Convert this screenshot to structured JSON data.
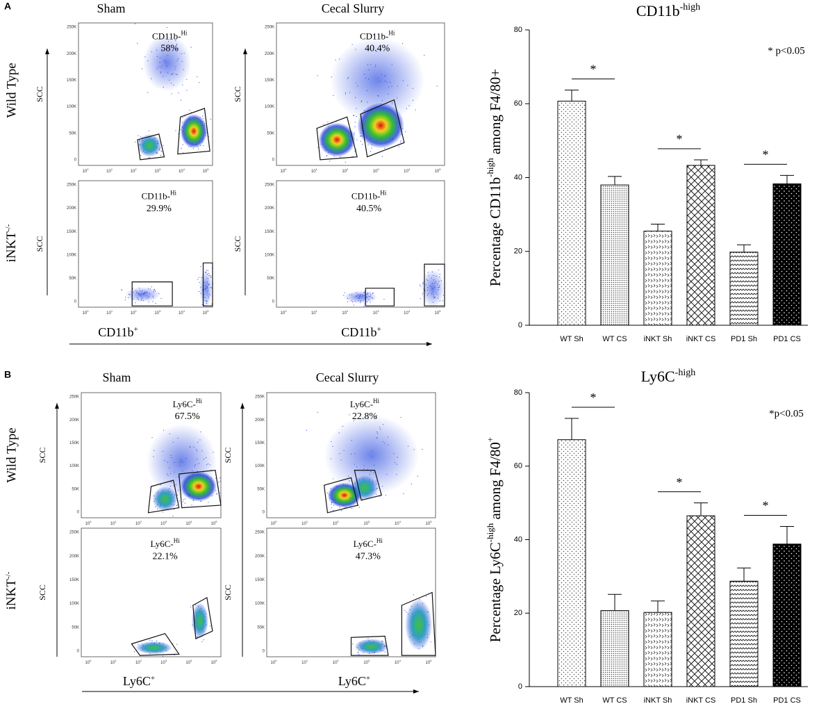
{
  "panel_labels": [
    "A",
    "B"
  ],
  "flow_axis": {
    "yticks": [
      "0",
      "50K",
      "100K",
      "150K",
      "200K",
      "250K"
    ],
    "xtick_base": "10",
    "xtick_exponents": [
      "0",
      "1",
      "2",
      "3",
      "4",
      "5"
    ]
  },
  "panels": [
    {
      "columns": [
        "Sham",
        "Cecal Slurry"
      ],
      "rows": [
        "Wild Type",
        {
          "text": "iNKT",
          "sup": "-/-"
        }
      ],
      "y_axis_label": "SCC",
      "x_axis_label": {
        "text": "CD11b",
        "sup": "+"
      },
      "gates": [
        {
          "text": "CD11b-",
          "sup": "Hi",
          "percent": "58%"
        },
        {
          "text": "CD11b-",
          "sup": "Hi",
          "percent": "40.4%"
        },
        {
          "text": "CD11b-",
          "sup": "Hi",
          "percent": "29.9%"
        },
        {
          "text": "CD11b-",
          "sup": "Hi",
          "percent": "40.5%"
        }
      ]
    },
    {
      "columns": [
        "Sham",
        "Cecal Slurry"
      ],
      "rows": [
        "Wild Type",
        {
          "text": "iNKT",
          "sup": "-/-"
        }
      ],
      "y_axis_label": "SCC",
      "x_axis_label": {
        "text": "Ly6C",
        "sup": "+"
      },
      "gates": [
        {
          "text": "Ly6C-",
          "sup": "Hi",
          "percent": "67.5%"
        },
        {
          "text": "Ly6C-",
          "sup": "Hi",
          "percent": "22.8%"
        },
        {
          "text": "Ly6C-",
          "sup": "Hi",
          "percent": "22.1%"
        },
        {
          "text": "Ly6C-",
          "sup": "Hi",
          "percent": "47.3%"
        }
      ]
    }
  ],
  "chart_data": [
    {
      "type": "bar",
      "title": {
        "text": "CD11b",
        "sup": "-high"
      },
      "y_label": [
        {
          "text": "Percentage CD11b"
        },
        {
          "sup": "-high"
        },
        {
          "text": " among F4/80+"
        }
      ],
      "annotation": "* p<0.05",
      "categories": [
        "WT Sh",
        "WT CS",
        "iNKT Sh",
        "iNKT CS",
        "PD1 Sh",
        "PD1 CS"
      ],
      "values": [
        60.7,
        38,
        25.5,
        43.3,
        19.8,
        38.3
      ],
      "errors": [
        3,
        2.3,
        1.9,
        1.5,
        2,
        2.3
      ],
      "patterns": [
        "sparse-dots",
        "dense-dots",
        "small-zigzag",
        "crosshatch",
        "zigzag",
        "black-dots"
      ],
      "significance": [
        "*",
        "*",
        "*"
      ],
      "ylim": [
        0,
        80
      ],
      "yticks": [
        0,
        20,
        40,
        60,
        80
      ]
    },
    {
      "type": "bar",
      "title": {
        "text": "Ly6C",
        "sup": "-high"
      },
      "y_label": [
        {
          "text": "Percentage Ly6C"
        },
        {
          "sup": "-high"
        },
        {
          "text": " among F4/80"
        },
        {
          "sup": "+"
        }
      ],
      "annotation": "*p<0.05",
      "categories": [
        "WT Sh",
        "WT CS",
        "iNKT Sh",
        "iNKT CS",
        "PD1 Sh",
        "PD1 CS"
      ],
      "values": [
        67.2,
        20.7,
        20.2,
        46.5,
        28.7,
        38.8
      ],
      "errors": [
        5.8,
        4.4,
        3.1,
        3.5,
        3.6,
        4.8
      ],
      "patterns": [
        "sparse-dots",
        "dense-dots",
        "small-zigzag",
        "crosshatch",
        "zigzag",
        "black-dots"
      ],
      "significance": [
        "*",
        "*",
        "*"
      ],
      "ylim": [
        0,
        80
      ],
      "yticks": [
        0,
        20,
        40,
        60,
        80
      ]
    }
  ]
}
